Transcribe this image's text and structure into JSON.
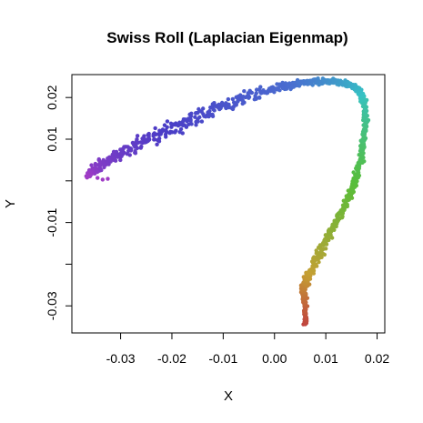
{
  "chart_data": {
    "type": "scatter",
    "title": "Swiss Roll (Laplacian Eigenmap)",
    "xlabel": "X",
    "ylabel": "Y",
    "xlim": [
      -0.0395,
      0.0215
    ],
    "ylim": [
      -0.0365,
      0.0255
    ],
    "x_ticks": [
      -0.03,
      -0.02,
      -0.01,
      0.0,
      0.01,
      0.02
    ],
    "x_tick_labels": [
      "-0.03",
      "-0.02",
      "-0.01",
      "0.00",
      "0.01",
      "0.02"
    ],
    "y_ticks": [
      -0.03,
      -0.02,
      -0.01,
      0.0,
      0.01,
      0.02
    ],
    "y_tick_labels": [
      "-0.03",
      "",
      "-0.01",
      "",
      "0.01",
      "0.02"
    ],
    "grid": false,
    "legend": "none",
    "color_scale": "rainbow along manifold (red → yellow → green → cyan → blue → magenta)",
    "color_stops": [
      "#c0443f",
      "#c4a034",
      "#57be3a",
      "#36c2c4",
      "#4a6fd0",
      "#4a3cc6",
      "#a03cc6"
    ],
    "curve": [
      {
        "x": 0.006,
        "y": -0.0345
      },
      {
        "x": 0.006,
        "y": -0.03
      },
      {
        "x": 0.0055,
        "y": -0.026
      },
      {
        "x": 0.0065,
        "y": -0.023
      },
      {
        "x": 0.009,
        "y": -0.017
      },
      {
        "x": 0.012,
        "y": -0.01
      },
      {
        "x": 0.015,
        "y": -0.003
      },
      {
        "x": 0.0168,
        "y": 0.005
      },
      {
        "x": 0.0178,
        "y": 0.013
      },
      {
        "x": 0.0175,
        "y": 0.019
      },
      {
        "x": 0.016,
        "y": 0.0225
      },
      {
        "x": 0.012,
        "y": 0.024
      },
      {
        "x": 0.007,
        "y": 0.0238
      },
      {
        "x": 0.001,
        "y": 0.0225
      },
      {
        "x": -0.007,
        "y": 0.0195
      },
      {
        "x": -0.015,
        "y": 0.0155
      },
      {
        "x": -0.023,
        "y": 0.011
      },
      {
        "x": -0.03,
        "y": 0.0065
      },
      {
        "x": -0.035,
        "y": 0.003
      },
      {
        "x": -0.0365,
        "y": 0.001
      }
    ],
    "spread": [
      0.0006,
      0.0007,
      0.0009,
      0.0012,
      0.0012,
      0.0011,
      0.001,
      0.0008,
      0.0007,
      0.0008,
      0.0009,
      0.0008,
      0.0008,
      0.0012,
      0.0018,
      0.0022,
      0.0022,
      0.0018,
      0.0012,
      0.0004
    ]
  }
}
